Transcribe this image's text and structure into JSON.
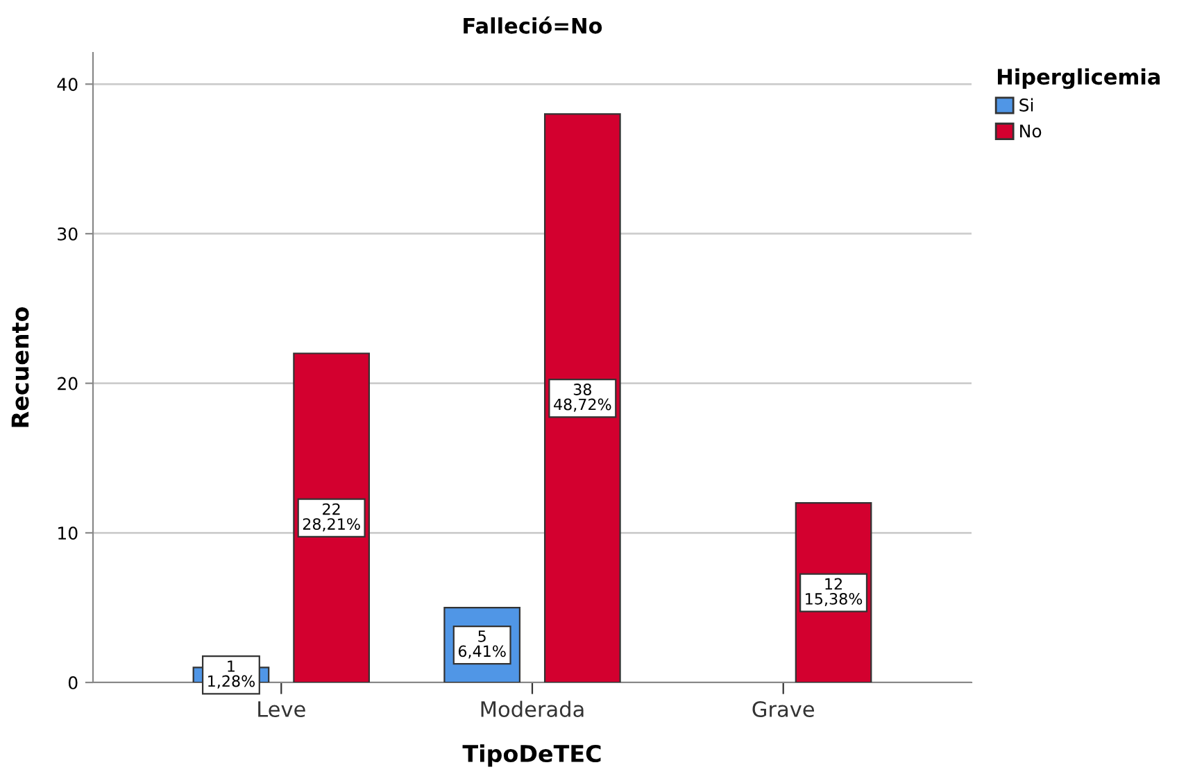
{
  "chart_data": {
    "type": "bar",
    "title": "Falleció=No",
    "xlabel": "TipoDeTEC",
    "ylabel": "Recuento",
    "legend_title": "Hiperglicemia",
    "categories": [
      "Leve",
      "Moderada",
      "Grave"
    ],
    "series": [
      {
        "name": "Si",
        "color": "#5096e6",
        "values": [
          1,
          5,
          null
        ],
        "value_labels": [
          "1\n1,28%",
          "5\n6,41%",
          null
        ]
      },
      {
        "name": "No",
        "color": "#d3002f",
        "values": [
          22,
          38,
          12
        ],
        "value_labels": [
          "22\n28,21%",
          "38\n48,72%",
          "12\n15,38%"
        ]
      }
    ],
    "ylim": [
      0,
      42.1
    ],
    "yticks": [
      0,
      10,
      20,
      30,
      40
    ],
    "grid": "y",
    "legend": "top right"
  }
}
